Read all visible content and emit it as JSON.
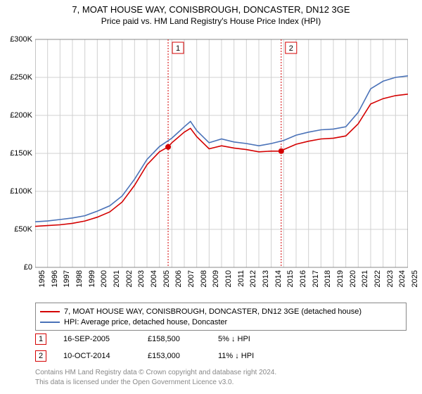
{
  "title": "7, MOAT HOUSE WAY, CONISBROUGH, DONCASTER, DN12 3GE",
  "subtitle": "Price paid vs. HM Land Registry's House Price Index (HPI)",
  "chart": {
    "type": "line",
    "background_color": "#ffffff",
    "grid_color": "#d0d0d0",
    "axis_color": "#888888",
    "ylim": [
      0,
      300000
    ],
    "ytick_step": 50000,
    "yticks": [
      "£0",
      "£50K",
      "£100K",
      "£150K",
      "£200K",
      "£250K",
      "£300K"
    ],
    "xlim": [
      1995,
      2025
    ],
    "xticks": [
      1995,
      1996,
      1997,
      1998,
      1999,
      2000,
      2001,
      2002,
      2003,
      2004,
      2005,
      2006,
      2007,
      2008,
      2009,
      2010,
      2011,
      2012,
      2013,
      2014,
      2015,
      2016,
      2017,
      2018,
      2019,
      2020,
      2021,
      2022,
      2023,
      2024,
      2025
    ],
    "title_fontsize": 13,
    "label_fontsize": 11,
    "line_width": 1.6,
    "series": [
      {
        "name": "7, MOAT HOUSE WAY, CONISBROUGH, DONCASTER, DN12 3GE (detached house)",
        "color": "#d40000",
        "x": [
          1995,
          1996,
          1997,
          1998,
          1999,
          2000,
          2001,
          2002,
          2003,
          2004,
          2005,
          2005.7,
          2006,
          2007,
          2007.5,
          2008,
          2009,
          2010,
          2011,
          2012,
          2013,
          2014,
          2014.8,
          2015,
          2016,
          2017,
          2018,
          2019,
          2020,
          2021,
          2022,
          2023,
          2024,
          2025
        ],
        "y": [
          54000,
          55000,
          56000,
          58000,
          61000,
          66000,
          73000,
          86000,
          108000,
          135000,
          152000,
          158500,
          164000,
          178000,
          183000,
          172000,
          156000,
          160000,
          157000,
          155000,
          152000,
          153000,
          153000,
          155000,
          162000,
          166000,
          169000,
          170000,
          173000,
          189000,
          215000,
          222000,
          226000,
          228000
        ]
      },
      {
        "name": "HPI: Average price, detached house, Doncaster",
        "color": "#4a72b8",
        "x": [
          1995,
          1996,
          1997,
          1998,
          1999,
          2000,
          2001,
          2002,
          2003,
          2004,
          2005,
          2006,
          2007,
          2007.5,
          2008,
          2009,
          2010,
          2011,
          2012,
          2013,
          2014,
          2015,
          2016,
          2017,
          2018,
          2019,
          2020,
          2021,
          2022,
          2023,
          2024,
          2025
        ],
        "y": [
          60000,
          61000,
          63000,
          65000,
          68000,
          74000,
          81000,
          94000,
          116000,
          142000,
          159000,
          170000,
          185000,
          192000,
          180000,
          164000,
          169000,
          165000,
          163000,
          160000,
          163000,
          167000,
          174000,
          178000,
          181000,
          182000,
          185000,
          204000,
          235000,
          245000,
          250000,
          252000
        ]
      }
    ],
    "markers": [
      {
        "n": "1",
        "x": 2005.7,
        "y": 158500,
        "line_color": "#d40000",
        "dotted": true
      },
      {
        "n": "2",
        "x": 2014.8,
        "y": 153000,
        "line_color": "#d40000",
        "dotted": true
      }
    ],
    "marker_dot_color": "#d40000",
    "marker_box_border": "#d40000",
    "marker_box_bg": "#ffffff"
  },
  "legend": {
    "items": [
      {
        "color": "#d40000",
        "label": "7, MOAT HOUSE WAY, CONISBROUGH, DONCASTER, DN12 3GE (detached house)"
      },
      {
        "color": "#4a72b8",
        "label": "HPI: Average price, detached house, Doncaster"
      }
    ]
  },
  "sales": [
    {
      "n": "1",
      "date": "16-SEP-2005",
      "price": "£158,500",
      "diff": "5% ↓ HPI",
      "color": "#d40000"
    },
    {
      "n": "2",
      "date": "10-OCT-2014",
      "price": "£153,000",
      "diff": "11% ↓ HPI",
      "color": "#d40000"
    }
  ],
  "footer": {
    "line1": "Contains HM Land Registry data © Crown copyright and database right 2024.",
    "line2": "This data is licensed under the Open Government Licence v3.0."
  }
}
